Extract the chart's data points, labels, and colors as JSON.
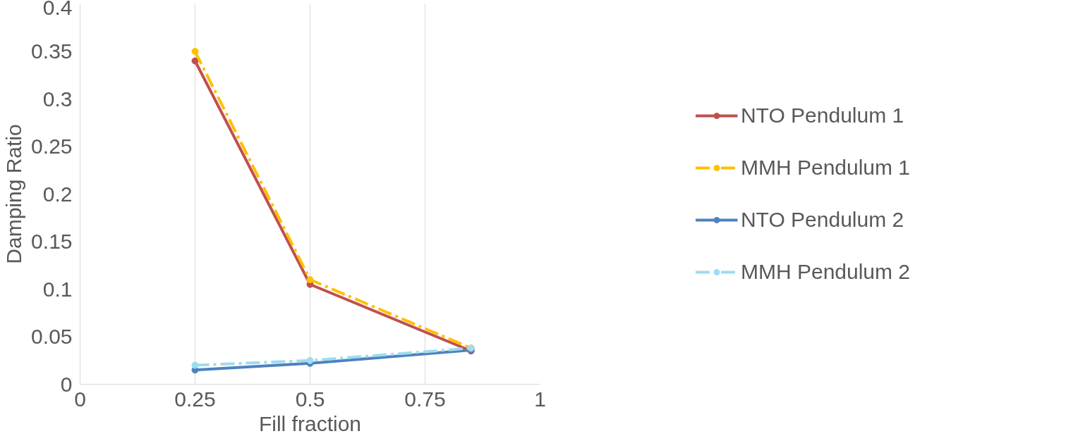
{
  "chart_data": {
    "type": "line",
    "xlabel": "Fill fraction",
    "ylabel": "Damping Ratio",
    "x": [
      0.25,
      0.5,
      0.85
    ],
    "series": [
      {
        "name": "NTO Pendulum 1",
        "color": "#c0504d",
        "values": [
          0.34,
          0.105,
          0.035
        ],
        "line_style": "solid"
      },
      {
        "name": "MMH Pendulum 1",
        "color": "#ffc000",
        "values": [
          0.35,
          0.11,
          0.038
        ],
        "line_style": "dashed"
      },
      {
        "name": "NTO Pendulum 2",
        "color": "#4f81bd",
        "values": [
          0.015,
          0.022,
          0.036
        ],
        "line_style": "solid"
      },
      {
        "name": "MMH Pendulum 2",
        "color": "#9edcf0",
        "values": [
          0.02,
          0.025,
          0.038
        ],
        "line_style": "dashed"
      }
    ],
    "xlim": [
      0,
      1
    ],
    "xticks": [
      0,
      0.25,
      0.5,
      0.75,
      1
    ],
    "ylim": [
      0,
      0.4
    ],
    "yticks": [
      0,
      0.05,
      0.1,
      0.15,
      0.2,
      0.25,
      0.3,
      0.35,
      0.4
    ],
    "grid": "x",
    "legend": "right",
    "marker": "circle"
  }
}
